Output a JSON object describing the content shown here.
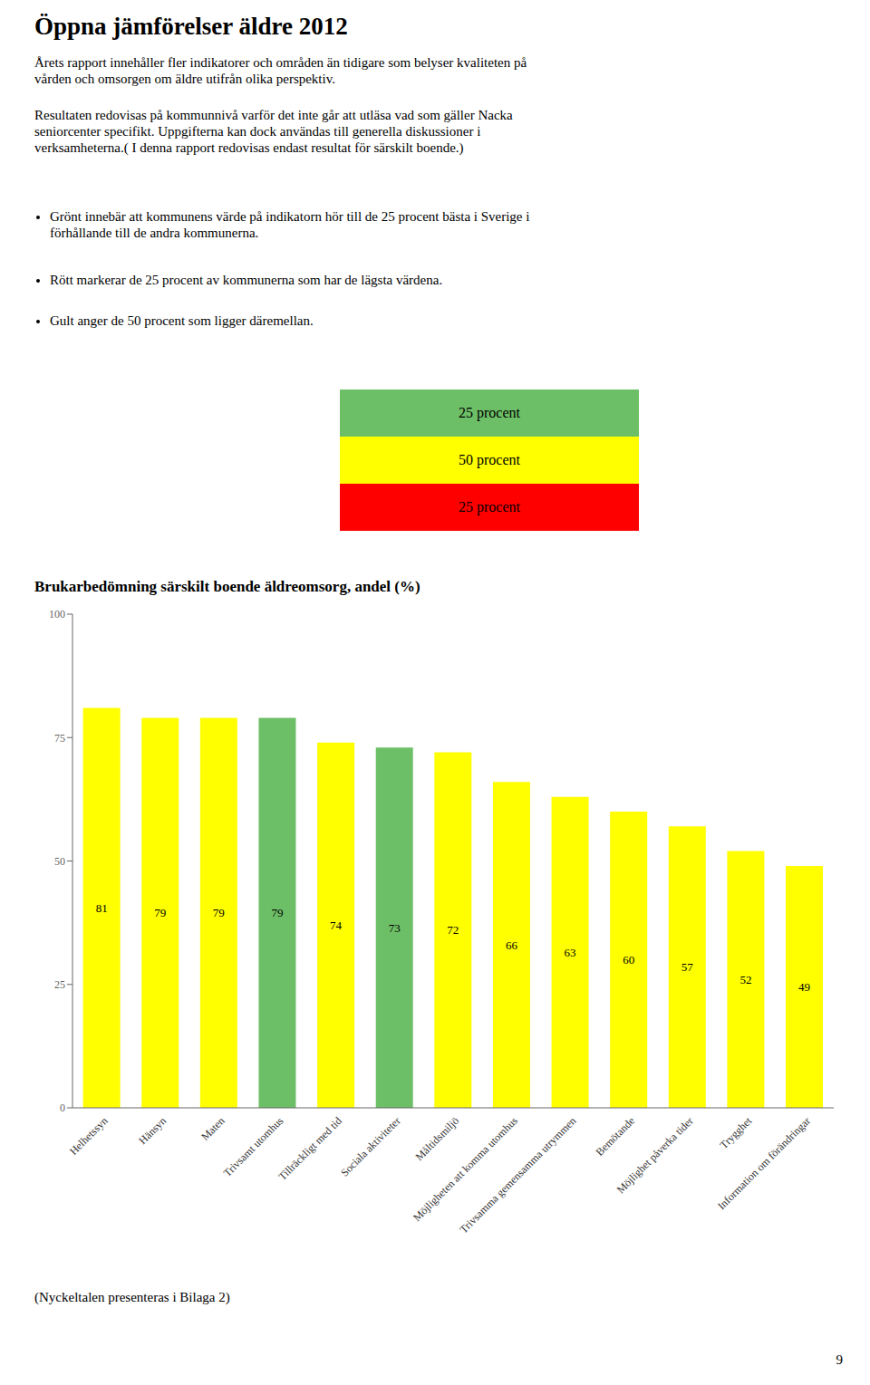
{
  "title": "Öppna jämförelser äldre 2012",
  "annotations": [
    {
      "text": "Årets rapport innehåller fler indikatorer och områden än tidigare som belyser kvaliteten på\nvården och omsorgen om äldre utifrån olika perspektiv."
    },
    {
      "text": "Resultaten redovisas på kommunnivå varför det inte går att utläsa vad som gäller Nacka\nseniorcenter specifikt. Uppgifterna kan dock användas till generella diskussioner i\nverksamheterna.( I denna rapport redovisas endast resultat för särskilt boende.)"
    },
    {
      "text": "Grönt innebär att kommunens värde på indikatorn hör till de 25 procent bästa i Sverige i\nförhållande till de andra kommunerna."
    },
    {
      "text": "Rött markerar de 25 procent av kommunerna som har de lägsta värdena."
    },
    {
      "text": "Gult anger de 50 procent som ligger däremellan."
    },
    {
      "text": "25 procent",
      "color": "#6dbf67"
    },
    {
      "text": "50 procent",
      "color": "#FFFF00"
    },
    {
      "text": "25 procent",
      "color": "#FF0000"
    },
    {
      "text": "(Nyckeltalen presenteras i Bilaga 2)"
    },
    {
      "text": "9"
    }
  ],
  "chart_data": {
    "type": "bar",
    "title": "Brukarbedömning särskilt boende äldreomsorg, andel (%)",
    "categories": [
      "Helhetssyn",
      "Hänsyn",
      "Maten",
      "Trivsamt utomhus",
      "Tillräckligt med tid",
      "Sociala aktiviteter",
      "Måltidsmiljö",
      "Möjligheten att komma utomhus",
      "Trivsamma gemensamma utrymmen",
      "Bemötande",
      "Möjlighet påverka tider",
      "Trygghet",
      "Information om förändringar"
    ],
    "values": [
      81,
      79,
      79,
      79,
      74,
      73,
      72,
      66,
      63,
      60,
      57,
      52,
      49
    ],
    "colors": [
      "#FFFF00",
      "#FFFF00",
      "#FFFF00",
      "#6dbf67",
      "#FFFF00",
      "#6dbf67",
      "#FFFF00",
      "#FFFF00",
      "#FFFF00",
      "#FFFF00",
      "#FFFF00",
      "#FFFF00",
      "#FFFF00"
    ],
    "ylim": [
      0,
      100
    ],
    "yticks": [
      0,
      25,
      50,
      75,
      100
    ],
    "grid": false,
    "data_labels": true
  }
}
